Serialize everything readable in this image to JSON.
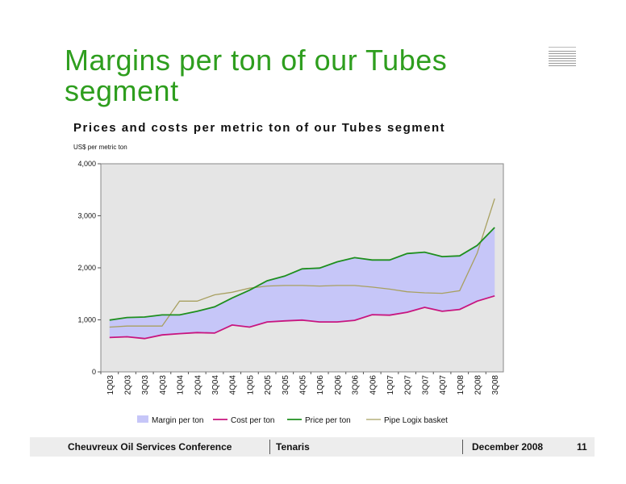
{
  "slide": {
    "title": "Margins per ton of our Tubes segment"
  },
  "chart_data": {
    "type": "line",
    "title": "Prices and costs per metric ton of our Tubes segment",
    "ylabel": "US$ per metric ton",
    "xlabel": "",
    "ylim": [
      0,
      4000
    ],
    "yticks": [
      "0",
      "1,000",
      "2,000",
      "3,000",
      "4,000"
    ],
    "ytick_values": [
      0,
      1000,
      2000,
      3000,
      4000
    ],
    "grid": false,
    "legend_position": "bottom",
    "categories": [
      "1Q03",
      "2Q03",
      "3Q03",
      "4Q03",
      "1Q04",
      "2Q04",
      "3Q04",
      "4Q04",
      "1Q05",
      "2Q05",
      "3Q05",
      "4Q05",
      "1Q06",
      "2Q06",
      "3Q06",
      "4Q06",
      "1Q07",
      "2Q07",
      "3Q07",
      "4Q07",
      "1Q08",
      "2Q08",
      "3Q08"
    ],
    "series": [
      {
        "name": "Cost per ton",
        "color": "#c8157f",
        "values": [
          660,
          675,
          640,
          710,
          735,
          755,
          745,
          900,
          860,
          960,
          980,
          995,
          960,
          960,
          990,
          1100,
          1090,
          1145,
          1240,
          1165,
          1200,
          1360,
          1460
        ]
      },
      {
        "name": "Price per ton",
        "color": "#1e8f1e",
        "values": [
          995,
          1045,
          1055,
          1095,
          1095,
          1165,
          1250,
          1420,
          1570,
          1750,
          1840,
          1980,
          1995,
          2115,
          2195,
          2150,
          2150,
          2275,
          2300,
          2215,
          2230,
          2430,
          2775
        ]
      },
      {
        "name": "Pipe Logix basket",
        "color": "#a8a060",
        "values": [
          860,
          880,
          880,
          880,
          1360,
          1360,
          1480,
          1530,
          1610,
          1650,
          1660,
          1660,
          1650,
          1660,
          1660,
          1630,
          1590,
          1540,
          1520,
          1510,
          1560,
          2280,
          3330
        ]
      }
    ],
    "area": {
      "name": "Margin per ton",
      "color": "#c6c6f8",
      "lower_series": "Cost per ton",
      "upper_series": "Price per ton"
    },
    "legend": [
      "Margin per ton",
      "Cost per ton",
      "Price per ton",
      "Pipe Logix basket"
    ]
  },
  "footer": {
    "conference": "Cheuvreux Oil Services Conference",
    "company": "Tenaris",
    "date": "December 2008",
    "page": "11"
  }
}
